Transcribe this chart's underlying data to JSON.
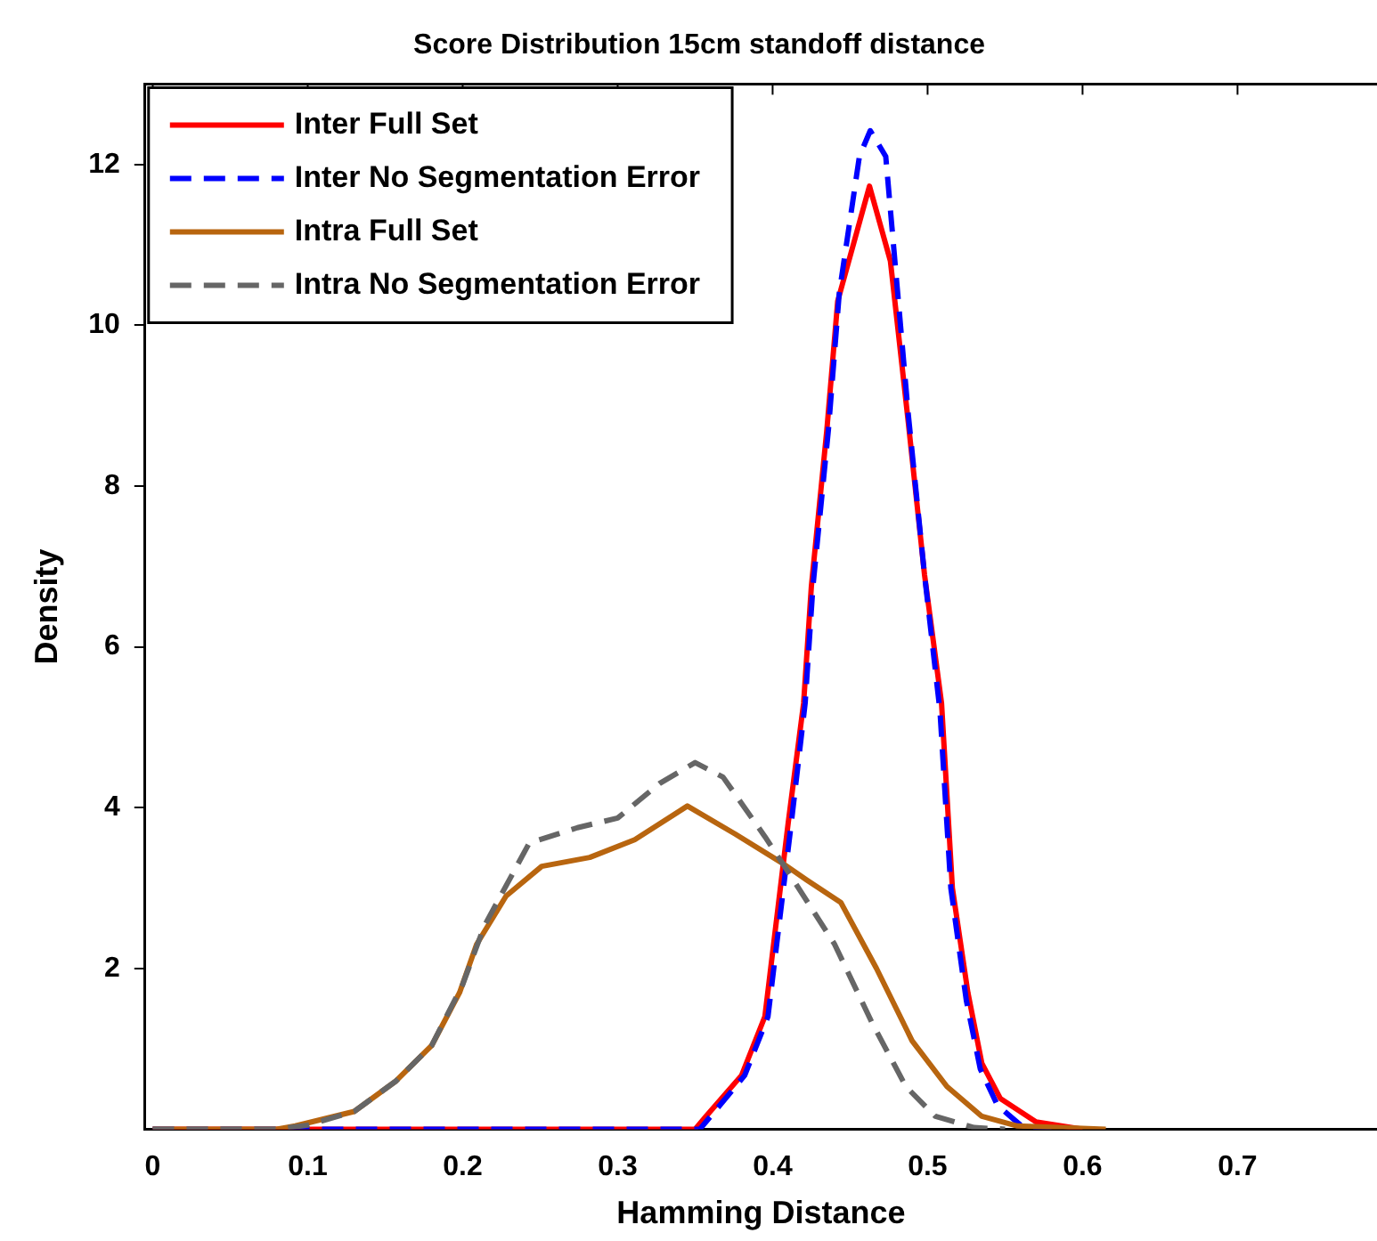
{
  "chart_data": {
    "type": "line",
    "title": "Score Distribution 15cm standoff distance",
    "xlabel": "Hamming Distance",
    "ylabel": "Density",
    "xlim": [
      -0.005,
      0.79
    ],
    "xticks": [
      0,
      0.1,
      0.2,
      0.3,
      0.4,
      0.5,
      0.6,
      0.7
    ],
    "ylim": [
      0,
      13
    ],
    "yticks": [
      2,
      4,
      6,
      8,
      10,
      12
    ],
    "grid": false,
    "legend": "top left",
    "marker": "none",
    "series": [
      {
        "name": "Inter Full Set",
        "color": "#ff0000",
        "line_style": "solid",
        "x": [
          0,
          0.1,
          0.2,
          0.3,
          0.35,
          0.357,
          0.38,
          0.395,
          0.41,
          0.42,
          0.425,
          0.435,
          0.442,
          0.4625,
          0.476,
          0.4875,
          0.498,
          0.509,
          0.516,
          0.526,
          0.535,
          0.547,
          0.57,
          0.6
        ],
        "values": [
          0,
          0,
          0,
          0,
          0,
          0.16,
          0.67,
          1.4,
          3.8,
          5.3,
          6.75,
          8.7,
          10.3,
          11.73,
          10.8,
          8.8,
          6.9,
          5.3,
          3.0,
          1.7,
          0.82,
          0.38,
          0.09,
          0
        ]
      },
      {
        "name": "Inter No Segmentation Error",
        "color": "#0000ff",
        "line_style": "dashed",
        "x": [
          0,
          0.1,
          0.2,
          0.3,
          0.353,
          0.36,
          0.382,
          0.397,
          0.412,
          0.421,
          0.426,
          0.436,
          0.443,
          0.456,
          0.463,
          0.473,
          0.4875,
          0.498,
          0.508,
          0.515,
          0.525,
          0.534,
          0.545,
          0.56,
          0.58
        ],
        "values": [
          0,
          0,
          0,
          0,
          0,
          0.16,
          0.67,
          1.4,
          3.8,
          5.3,
          6.75,
          8.7,
          10.4,
          12.1,
          12.42,
          12.1,
          8.9,
          6.9,
          5.2,
          3.0,
          1.6,
          0.75,
          0.3,
          0.05,
          0
        ]
      },
      {
        "name": "Intra Full Set",
        "color": "#b8650f",
        "line_style": "solid",
        "x": [
          0,
          0.08,
          0.092,
          0.13,
          0.157,
          0.18,
          0.198,
          0.209,
          0.228,
          0.251,
          0.282,
          0.311,
          0.345,
          0.376,
          0.407,
          0.422,
          0.444,
          0.467,
          0.49,
          0.5125,
          0.535,
          0.558,
          0.615
        ],
        "values": [
          0,
          0,
          0.04,
          0.22,
          0.6,
          1.04,
          1.7,
          2.3,
          2.9,
          3.27,
          3.38,
          3.6,
          4.02,
          3.67,
          3.3,
          3.1,
          2.82,
          2.0,
          1.1,
          0.53,
          0.16,
          0.04,
          0
        ]
      },
      {
        "name": "Intra No Segmentation Error",
        "color": "#666666",
        "line_style": "dashed",
        "x": [
          0,
          0.08,
          0.1,
          0.13,
          0.157,
          0.18,
          0.2,
          0.214,
          0.243,
          0.274,
          0.3,
          0.327,
          0.35,
          0.368,
          0.395,
          0.41,
          0.44,
          0.464,
          0.486,
          0.505,
          0.53,
          0.55
        ],
        "values": [
          0,
          0,
          0.05,
          0.22,
          0.6,
          1.04,
          1.8,
          2.53,
          3.56,
          3.75,
          3.87,
          4.3,
          4.56,
          4.38,
          3.64,
          3.2,
          2.3,
          1.33,
          0.53,
          0.16,
          0.02,
          0
        ]
      }
    ]
  }
}
